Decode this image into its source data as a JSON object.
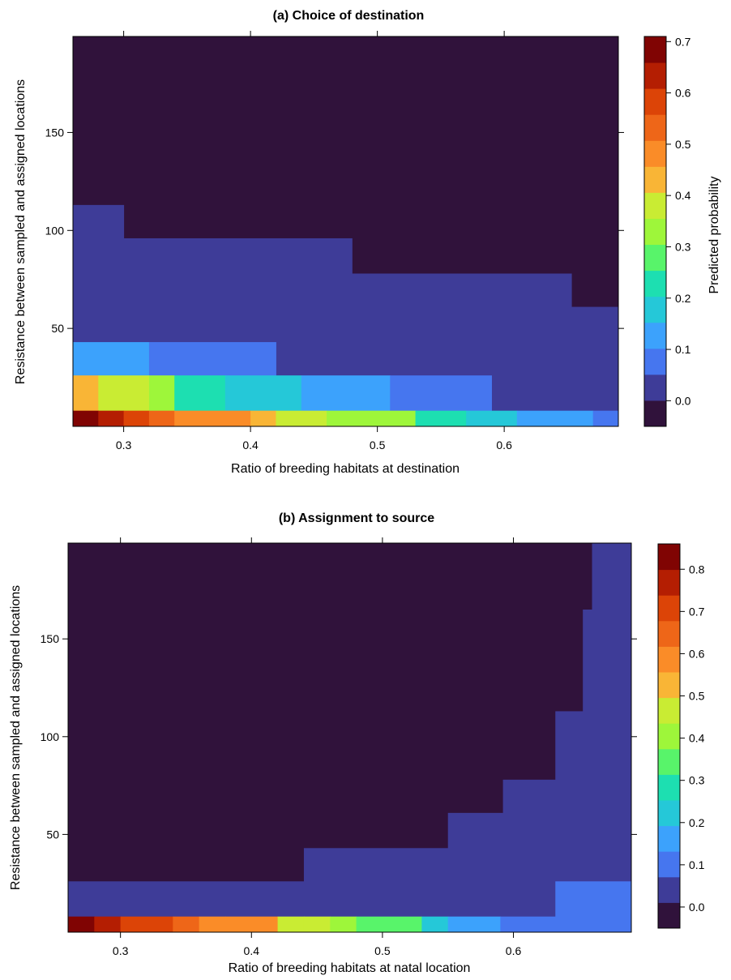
{
  "chart_data": [
    {
      "type": "heatmap",
      "title": "(a) Choice of destination",
      "xlabel": "Ratio of breeding habitats at destination",
      "ylabel": "Resistance between sampled and assigned locations",
      "colorbar_label": "Predicted probability",
      "xlim": [
        0.26,
        0.69
      ],
      "ylim": [
        0,
        199
      ],
      "xticks": [
        "0.3",
        "0.4",
        "0.5",
        "0.6"
      ],
      "yticks": [
        "50",
        "100",
        "150"
      ],
      "colorbar_range": [
        -0.05,
        0.71
      ],
      "colorbar_ticks": [
        "0.0",
        "0.1",
        "0.2",
        "0.3",
        "0.4",
        "0.5",
        "0.6",
        "0.7"
      ],
      "cells": [
        {
          "x": [
            0.26,
            0.69
          ],
          "y": [
            0,
            199
          ],
          "value": -0.02
        },
        {
          "x": [
            0.26,
            0.3
          ],
          "y": [
            0,
            113
          ],
          "value": 0.02
        },
        {
          "x": [
            0.3,
            0.48
          ],
          "y": [
            0,
            96
          ],
          "value": 0.02
        },
        {
          "x": [
            0.48,
            0.653
          ],
          "y": [
            0,
            78
          ],
          "value": 0.02
        },
        {
          "x": [
            0.653,
            0.69
          ],
          "y": [
            0,
            61
          ],
          "value": 0.02
        },
        {
          "x": [
            0.26,
            0.32
          ],
          "y": [
            0,
            43
          ],
          "value": 0.12
        },
        {
          "x": [
            0.32,
            0.42
          ],
          "y": [
            0,
            43
          ],
          "value": 0.08
        },
        {
          "x": [
            0.26,
            0.28
          ],
          "y": [
            0,
            26
          ],
          "value": 0.42
        },
        {
          "x": [
            0.28,
            0.32
          ],
          "y": [
            0,
            26
          ],
          "value": 0.38
        },
        {
          "x": [
            0.32,
            0.34
          ],
          "y": [
            0,
            26
          ],
          "value": 0.32
        },
        {
          "x": [
            0.34,
            0.38
          ],
          "y": [
            0,
            26
          ],
          "value": 0.22
        },
        {
          "x": [
            0.38,
            0.44
          ],
          "y": [
            0,
            26
          ],
          "value": 0.18
        },
        {
          "x": [
            0.44,
            0.51
          ],
          "y": [
            0,
            26
          ],
          "value": 0.13
        },
        {
          "x": [
            0.51,
            0.59
          ],
          "y": [
            0,
            26
          ],
          "value": 0.08
        },
        {
          "x": [
            0.26,
            0.28
          ],
          "y": [
            0,
            8
          ],
          "value": 0.7
        },
        {
          "x": [
            0.28,
            0.3
          ],
          "y": [
            0,
            8
          ],
          "value": 0.64
        },
        {
          "x": [
            0.3,
            0.32
          ],
          "y": [
            0,
            8
          ],
          "value": 0.59
        },
        {
          "x": [
            0.32,
            0.34
          ],
          "y": [
            0,
            8
          ],
          "value": 0.55
        },
        {
          "x": [
            0.34,
            0.38
          ],
          "y": [
            0,
            8
          ],
          "value": 0.5
        },
        {
          "x": [
            0.38,
            0.4
          ],
          "y": [
            0,
            8
          ],
          "value": 0.46
        },
        {
          "x": [
            0.4,
            0.42
          ],
          "y": [
            0,
            8
          ],
          "value": 0.42
        },
        {
          "x": [
            0.42,
            0.46
          ],
          "y": [
            0,
            8
          ],
          "value": 0.38
        },
        {
          "x": [
            0.46,
            0.48
          ],
          "y": [
            0,
            8
          ],
          "value": 0.35
        },
        {
          "x": [
            0.48,
            0.53
          ],
          "y": [
            0,
            8
          ],
          "value": 0.32
        },
        {
          "x": [
            0.53,
            0.57
          ],
          "y": [
            0,
            8
          ],
          "value": 0.22
        },
        {
          "x": [
            0.57,
            0.61
          ],
          "y": [
            0,
            8
          ],
          "value": 0.18
        },
        {
          "x": [
            0.61,
            0.67
          ],
          "y": [
            0,
            8
          ],
          "value": 0.12
        },
        {
          "x": [
            0.67,
            0.69
          ],
          "y": [
            0,
            8
          ],
          "value": 0.08
        }
      ]
    },
    {
      "type": "heatmap",
      "title": "(b) Assignment to source",
      "xlabel": "Ratio of breeding habitats at natal location",
      "ylabel": "Resistance between sampled and assigned locations",
      "xlim": [
        0.26,
        0.69
      ],
      "ylim": [
        0,
        199
      ],
      "xticks": [
        "0.3",
        "0.4",
        "0.5",
        "0.6"
      ],
      "yticks": [
        "50",
        "100",
        "150"
      ],
      "colorbar_range": [
        -0.05,
        0.86
      ],
      "colorbar_ticks": [
        "0.0",
        "0.1",
        "0.2",
        "0.3",
        "0.4",
        "0.5",
        "0.6",
        "0.7",
        "0.8"
      ],
      "cells": [
        {
          "x": [
            0.26,
            0.69
          ],
          "y": [
            0,
            199
          ],
          "value": -0.02
        },
        {
          "x": [
            0.66,
            0.69
          ],
          "y": [
            0,
            199
          ],
          "value": 0.02
        },
        {
          "x": [
            0.653,
            0.69
          ],
          "y": [
            0,
            165
          ],
          "value": 0.02
        },
        {
          "x": [
            0.632,
            0.69
          ],
          "y": [
            0,
            113
          ],
          "value": 0.02
        },
        {
          "x": [
            0.592,
            0.69
          ],
          "y": [
            0,
            78
          ],
          "value": 0.02
        },
        {
          "x": [
            0.55,
            0.69
          ],
          "y": [
            0,
            61
          ],
          "value": 0.02
        },
        {
          "x": [
            0.44,
            0.69
          ],
          "y": [
            0,
            43
          ],
          "value": 0.02
        },
        {
          "x": [
            0.26,
            0.69
          ],
          "y": [
            0,
            26
          ],
          "value": 0.02
        },
        {
          "x": [
            0.632,
            0.69
          ],
          "y": [
            0,
            26
          ],
          "value": 0.09
        },
        {
          "x": [
            0.26,
            0.28
          ],
          "y": [
            0,
            8
          ],
          "value": 0.84
        },
        {
          "x": [
            0.28,
            0.3
          ],
          "y": [
            0,
            8
          ],
          "value": 0.78
        },
        {
          "x": [
            0.3,
            0.34
          ],
          "y": [
            0,
            8
          ],
          "value": 0.71
        },
        {
          "x": [
            0.34,
            0.36
          ],
          "y": [
            0,
            8
          ],
          "value": 0.66
        },
        {
          "x": [
            0.36,
            0.38
          ],
          "y": [
            0,
            8
          ],
          "value": 0.61
        },
        {
          "x": [
            0.38,
            0.42
          ],
          "y": [
            0,
            8
          ],
          "value": 0.56
        },
        {
          "x": [
            0.42,
            0.44
          ],
          "y": [
            0,
            8
          ],
          "value": 0.49
        },
        {
          "x": [
            0.44,
            0.46
          ],
          "y": [
            0,
            8
          ],
          "value": 0.44
        },
        {
          "x": [
            0.46,
            0.48
          ],
          "y": [
            0,
            8
          ],
          "value": 0.38
        },
        {
          "x": [
            0.48,
            0.53
          ],
          "y": [
            0,
            8
          ],
          "value": 0.32
        },
        {
          "x": [
            0.53,
            0.55
          ],
          "y": [
            0,
            8
          ],
          "value": 0.22
        },
        {
          "x": [
            0.55,
            0.59
          ],
          "y": [
            0,
            8
          ],
          "value": 0.16
        },
        {
          "x": [
            0.59,
            0.65
          ],
          "y": [
            0,
            8
          ],
          "value": 0.11
        },
        {
          "x": [
            0.65,
            0.69
          ],
          "y": [
            0,
            8
          ],
          "value": 0.08
        }
      ]
    }
  ]
}
